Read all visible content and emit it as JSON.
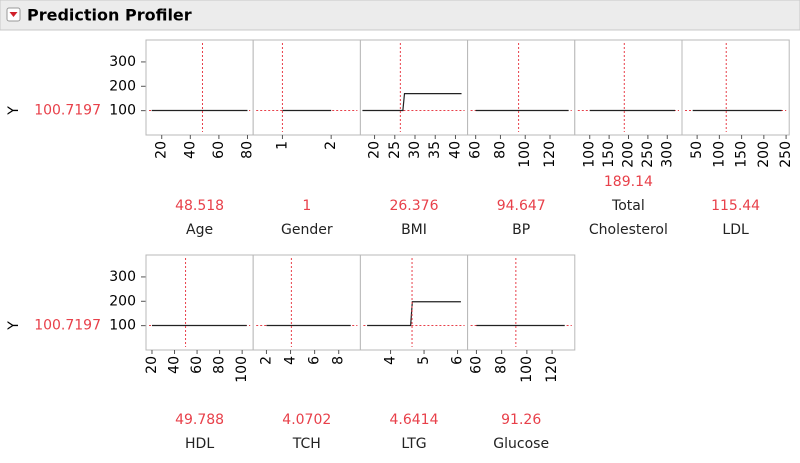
{
  "header": {
    "title": "Prediction Profiler"
  },
  "rows": [
    {
      "response": "Y",
      "value": 100.7197,
      "ylim": [
        0,
        390
      ],
      "yticks": [
        100,
        200,
        300
      ]
    },
    {
      "response": "Y",
      "value": 100.7197,
      "ylim": [
        0,
        390
      ],
      "yticks": [
        100,
        200,
        300
      ]
    }
  ],
  "chart_data": [
    {
      "type": "line",
      "x_label": "Age",
      "x_current": 48.518,
      "x": [
        13,
        80
      ],
      "values": [
        100.7197,
        100.7197
      ],
      "xlim": [
        9,
        84
      ],
      "xticks": [
        20,
        40,
        60,
        80
      ]
    },
    {
      "type": "line",
      "x_label": "Gender",
      "x_current": 1,
      "x": [
        1,
        2
      ],
      "values": [
        100.7197,
        100.7197
      ],
      "xlim": [
        0.4,
        2.6
      ],
      "xticks": [
        1,
        2
      ]
    },
    {
      "type": "line",
      "x_label": "BMI",
      "x_current": 26.376,
      "x": [
        17,
        27,
        27.4,
        41.5
      ],
      "values": [
        100.7197,
        100.7197,
        170,
        170
      ],
      "xlim": [
        16.5,
        43
      ],
      "xticks": [
        20,
        25,
        30,
        35,
        40
      ]
    },
    {
      "type": "line",
      "x_label": "BP",
      "x_current": 94.647,
      "x": [
        60,
        135
      ],
      "values": [
        100.7197,
        100.7197
      ],
      "xlim": [
        53.5,
        140
      ],
      "xticks": [
        60,
        80,
        100,
        120
      ]
    },
    {
      "type": "line",
      "x_label": "Total Cholesterol",
      "x_current": 189.14,
      "x": [
        100,
        320
      ],
      "values": [
        100.7197,
        100.7197
      ],
      "xlim": [
        61.5,
        338
      ],
      "xticks": [
        100,
        150,
        200,
        250,
        300
      ]
    },
    {
      "type": "line",
      "x_label": "LDL",
      "x_current": 115.44,
      "x": [
        40,
        240
      ],
      "values": [
        100.7197,
        100.7197
      ],
      "xlim": [
        16,
        257
      ],
      "xticks": [
        50,
        100,
        150,
        200,
        250
      ]
    },
    {
      "type": "line",
      "x_label": "HDL",
      "x_current": 49.788,
      "x": [
        20,
        104
      ],
      "values": [
        100.7197,
        100.7197
      ],
      "xlim": [
        14.7,
        109.8
      ],
      "xticks": [
        20,
        40,
        60,
        80,
        100
      ]
    },
    {
      "type": "line",
      "x_label": "TCH",
      "x_current": 4.0702,
      "x": [
        2,
        9
      ],
      "values": [
        100.7197,
        100.7197
      ],
      "xlim": [
        0.9,
        9.8
      ],
      "xticks": [
        2,
        4,
        6,
        8
      ]
    },
    {
      "type": "line",
      "x_label": "LTG",
      "x_current": 4.6414,
      "x": [
        3.3,
        4.6,
        4.65,
        6.1
      ],
      "values": [
        100.7197,
        100.7197,
        198,
        198
      ],
      "xlim": [
        3.1,
        6.3
      ],
      "xticks": [
        4,
        5,
        6
      ]
    },
    {
      "type": "line",
      "x_label": "Glucose",
      "x_current": 91.26,
      "x": [
        60,
        130
      ],
      "values": [
        100.7197,
        100.7197
      ],
      "xlim": [
        53,
        138
      ],
      "xticks": [
        60,
        80,
        100,
        120
      ]
    }
  ]
}
